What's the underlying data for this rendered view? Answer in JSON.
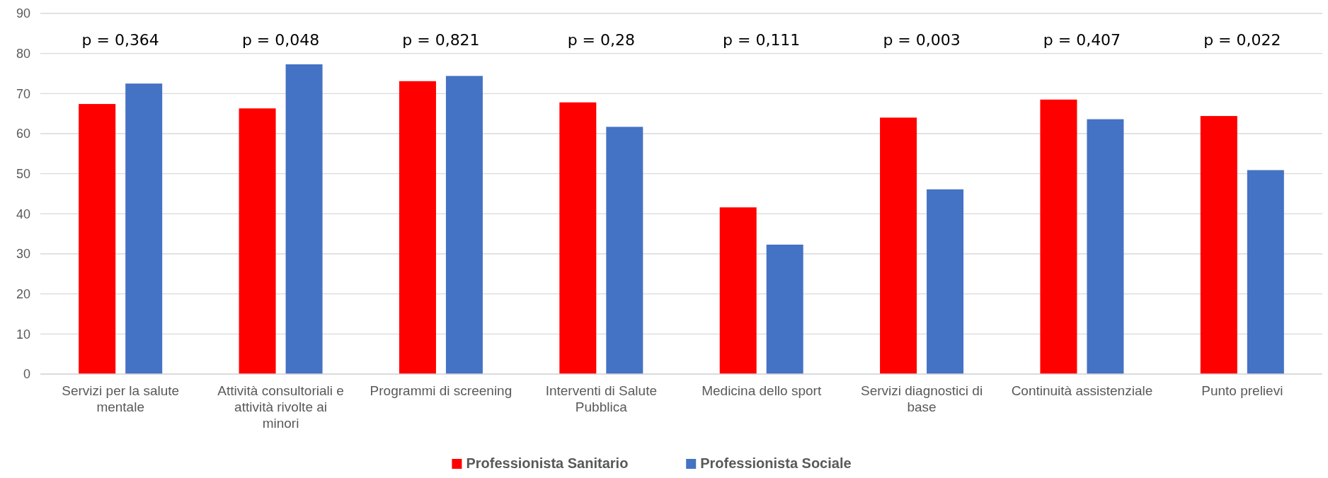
{
  "chart_data": {
    "type": "bar",
    "categories": [
      "Servizi per la salute mentale",
      "Attività consultoriali e attività rivolte ai minori",
      "Programmi di screening",
      "Interventi di Salute Pubblica",
      "Medicina dello sport",
      "Servizi diagnostici di base",
      "Continuità assistenziale",
      "Punto prelievi"
    ],
    "series": [
      {
        "name": "Professionista Sanitario",
        "color": "#ff0000",
        "values": [
          67.4,
          66.3,
          73.1,
          67.8,
          41.6,
          64.0,
          68.5,
          64.4
        ]
      },
      {
        "name": "Professionista Sociale",
        "color": "#4472c4",
        "values": [
          72.5,
          77.3,
          74.4,
          61.7,
          32.3,
          46.1,
          63.6,
          50.9
        ]
      }
    ],
    "ylim": [
      0,
      90
    ],
    "yticks": [
      0,
      10,
      20,
      30,
      40,
      50,
      60,
      70,
      80,
      90
    ],
    "grid": "y",
    "legend": "bottom",
    "annotations": [
      "p = 0,364",
      "p = 0,048",
      "p = 0,821",
      "p = 0,28",
      "p = 0,111",
      "p = 0,003",
      "p = 0,407",
      "p = 0,022"
    ]
  }
}
